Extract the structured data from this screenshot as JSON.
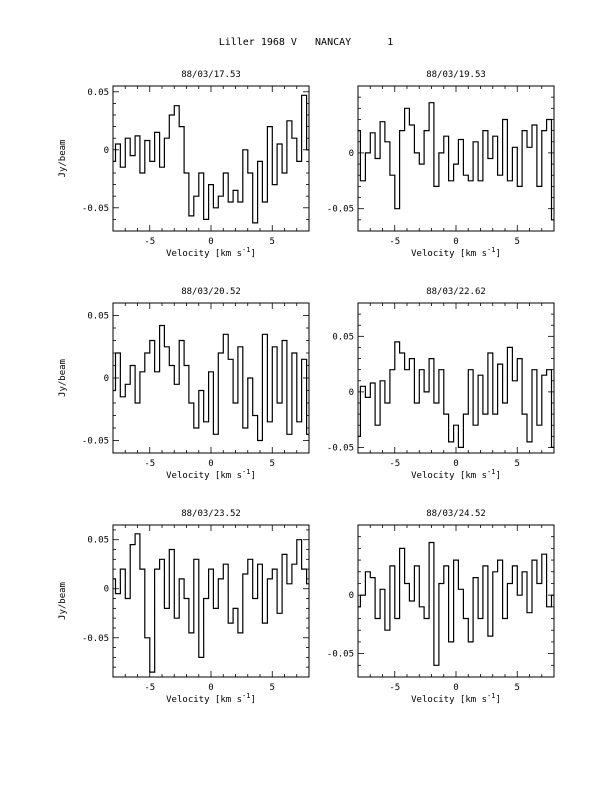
{
  "page": {
    "title_parts": [
      "Liller 1968 V",
      "NANCAY",
      "1"
    ]
  },
  "chart_data": [
    {
      "type": "line",
      "title": "88/03/17.53",
      "xlabel": "Velocity [km s",
      "xlabel_sup": "-1",
      "xlabel_end": "]",
      "ylabel": "Jy/beam",
      "xlim": [
        -8,
        8
      ],
      "ylim": [
        -0.07,
        0.055
      ],
      "xticks": [
        -5,
        0,
        5
      ],
      "xticklabels": [
        "-5",
        "0",
        "5"
      ],
      "yticks": [
        -0.05,
        0,
        0.05
      ],
      "yticklabels": [
        "-0.05",
        "0",
        "0.05"
      ],
      "x": [
        -8.0,
        -7.6,
        -7.2,
        -6.8,
        -6.4,
        -6.0,
        -5.6,
        -5.2,
        -4.8,
        -4.4,
        -4.0,
        -3.6,
        -3.2,
        -2.8,
        -2.4,
        -2.0,
        -1.6,
        -1.2,
        -0.8,
        -0.4,
        0.0,
        0.4,
        0.8,
        1.2,
        1.6,
        2.0,
        2.4,
        2.8,
        3.2,
        3.6,
        4.0,
        4.4,
        4.8,
        5.2,
        5.6,
        6.0,
        6.4,
        6.8,
        7.2,
        7.6,
        8.0
      ],
      "values": [
        -0.01,
        0.005,
        -0.015,
        0.01,
        -0.005,
        0.012,
        -0.02,
        0.008,
        -0.01,
        0.015,
        -0.015,
        0.01,
        0.03,
        0.038,
        0.02,
        -0.02,
        -0.057,
        -0.04,
        -0.02,
        -0.06,
        -0.03,
        -0.05,
        -0.04,
        -0.02,
        -0.045,
        -0.035,
        -0.045,
        0.0,
        -0.02,
        -0.063,
        -0.01,
        -0.045,
        0.02,
        -0.03,
        0.005,
        -0.02,
        0.025,
        0.01,
        -0.01,
        0.047,
        0.0
      ]
    },
    {
      "type": "line",
      "title": "88/03/19.53",
      "xlabel": "Velocity [km s",
      "xlabel_sup": "-1",
      "xlabel_end": "]",
      "ylabel": "",
      "xlim": [
        -8,
        8
      ],
      "ylim": [
        -0.07,
        0.06
      ],
      "xticks": [
        -5,
        0,
        5
      ],
      "xticklabels": [
        "-5",
        "0",
        "5"
      ],
      "yticks": [
        -0.05,
        0
      ],
      "yticklabels": [
        "-0.05",
        "0"
      ],
      "x": [
        -8.0,
        -7.6,
        -7.2,
        -6.8,
        -6.4,
        -6.0,
        -5.6,
        -5.2,
        -4.8,
        -4.4,
        -4.0,
        -3.6,
        -3.2,
        -2.8,
        -2.4,
        -2.0,
        -1.6,
        -1.2,
        -0.8,
        -0.4,
        0.0,
        0.4,
        0.8,
        1.2,
        1.6,
        2.0,
        2.4,
        2.8,
        3.2,
        3.6,
        4.0,
        4.4,
        4.8,
        5.2,
        5.6,
        6.0,
        6.4,
        6.8,
        7.2,
        7.6,
        8.0
      ],
      "values": [
        0.02,
        -0.025,
        0.0,
        0.018,
        -0.005,
        0.028,
        0.01,
        -0.02,
        -0.05,
        0.02,
        0.04,
        0.025,
        0.0,
        -0.01,
        0.02,
        0.045,
        -0.03,
        0.0,
        0.015,
        -0.025,
        -0.01,
        0.012,
        -0.02,
        -0.025,
        0.01,
        -0.025,
        0.02,
        -0.005,
        0.015,
        -0.02,
        0.03,
        -0.025,
        0.005,
        -0.03,
        0.02,
        0.005,
        0.025,
        -0.03,
        0.02,
        0.03,
        -0.06
      ]
    },
    {
      "type": "line",
      "title": "88/03/20.52",
      "xlabel": "Velocity [km s",
      "xlabel_sup": "-1",
      "xlabel_end": "]",
      "ylabel": "Jy/beam",
      "xlim": [
        -8,
        8
      ],
      "ylim": [
        -0.06,
        0.06
      ],
      "xticks": [
        -5,
        0,
        5
      ],
      "xticklabels": [
        "-5",
        "0",
        "5"
      ],
      "yticks": [
        -0.05,
        0,
        0.05
      ],
      "yticklabels": [
        "-0.05",
        "0",
        "0.05"
      ],
      "x": [
        -8.0,
        -7.6,
        -7.2,
        -6.8,
        -6.4,
        -6.0,
        -5.6,
        -5.2,
        -4.8,
        -4.4,
        -4.0,
        -3.6,
        -3.2,
        -2.8,
        -2.4,
        -2.0,
        -1.6,
        -1.2,
        -0.8,
        -0.4,
        0.0,
        0.4,
        0.8,
        1.2,
        1.6,
        2.0,
        2.4,
        2.8,
        3.2,
        3.6,
        4.0,
        4.4,
        4.8,
        5.2,
        5.6,
        6.0,
        6.4,
        6.8,
        7.2,
        7.6,
        8.0
      ],
      "values": [
        -0.01,
        0.02,
        -0.015,
        -0.005,
        0.01,
        -0.02,
        0.005,
        0.02,
        0.03,
        0.005,
        0.042,
        0.025,
        0.01,
        -0.005,
        0.03,
        0.01,
        -0.02,
        -0.04,
        -0.01,
        -0.035,
        0.005,
        -0.045,
        0.02,
        0.035,
        0.015,
        -0.02,
        0.025,
        -0.04,
        0.0,
        -0.03,
        -0.05,
        0.035,
        -0.035,
        0.025,
        -0.02,
        0.03,
        -0.045,
        0.02,
        -0.035,
        0.015,
        -0.045
      ]
    },
    {
      "type": "line",
      "title": "88/03/22.62",
      "xlabel": "Velocity [km s",
      "xlabel_sup": "-1",
      "xlabel_end": "]",
      "ylabel": "",
      "xlim": [
        -8,
        8
      ],
      "ylim": [
        -0.055,
        0.08
      ],
      "xticks": [
        -5,
        0,
        5
      ],
      "xticklabels": [
        "-5",
        "0",
        "5"
      ],
      "yticks": [
        -0.05,
        0,
        0.05
      ],
      "yticklabels": [
        "-0.05",
        "0",
        "0.05"
      ],
      "x": [
        -8.0,
        -7.6,
        -7.2,
        -6.8,
        -6.4,
        -6.0,
        -5.6,
        -5.2,
        -4.8,
        -4.4,
        -4.0,
        -3.6,
        -3.2,
        -2.8,
        -2.4,
        -2.0,
        -1.6,
        -1.2,
        -0.8,
        -0.4,
        0.0,
        0.4,
        0.8,
        1.2,
        1.6,
        2.0,
        2.4,
        2.8,
        3.2,
        3.6,
        4.0,
        4.4,
        4.8,
        5.2,
        5.6,
        6.0,
        6.4,
        6.8,
        7.2,
        7.6,
        8.0
      ],
      "values": [
        -0.04,
        0.005,
        -0.005,
        0.008,
        -0.03,
        0.01,
        -0.01,
        0.02,
        0.045,
        0.035,
        0.02,
        0.03,
        -0.01,
        0.02,
        0.0,
        0.03,
        -0.01,
        0.02,
        -0.02,
        -0.045,
        -0.03,
        -0.05,
        -0.02,
        0.02,
        -0.03,
        0.015,
        -0.02,
        0.035,
        -0.02,
        0.025,
        -0.01,
        0.04,
        0.01,
        0.03,
        -0.02,
        -0.045,
        0.02,
        -0.03,
        0.015,
        0.02,
        -0.05
      ]
    },
    {
      "type": "line",
      "title": "88/03/23.52",
      "xlabel": "Velocity [km s",
      "xlabel_sup": "-1",
      "xlabel_end": "]",
      "ylabel": "Jy/beam",
      "xlim": [
        -8,
        8
      ],
      "ylim": [
        -0.09,
        0.065
      ],
      "xticks": [
        -5,
        0,
        5
      ],
      "xticklabels": [
        "-5",
        "0",
        "5"
      ],
      "yticks": [
        -0.05,
        0,
        0.05
      ],
      "yticklabels": [
        "-0.05",
        "0",
        "0.05"
      ],
      "x": [
        -8.0,
        -7.6,
        -7.2,
        -6.8,
        -6.4,
        -6.0,
        -5.6,
        -5.2,
        -4.8,
        -4.4,
        -4.0,
        -3.6,
        -3.2,
        -2.8,
        -2.4,
        -2.0,
        -1.6,
        -1.2,
        -0.8,
        -0.4,
        0.0,
        0.4,
        0.8,
        1.2,
        1.6,
        2.0,
        2.4,
        2.8,
        3.2,
        3.6,
        4.0,
        4.4,
        4.8,
        5.2,
        5.6,
        6.0,
        6.4,
        6.8,
        7.2,
        7.6,
        8.0
      ],
      "values": [
        0.01,
        -0.005,
        0.02,
        -0.01,
        0.045,
        0.056,
        0.02,
        -0.05,
        -0.085,
        0.02,
        0.03,
        -0.02,
        0.04,
        -0.03,
        0.01,
        -0.01,
        -0.045,
        0.03,
        -0.07,
        -0.01,
        0.02,
        -0.02,
        0.01,
        0.025,
        -0.035,
        -0.02,
        -0.045,
        0.015,
        0.03,
        -0.01,
        0.025,
        -0.035,
        0.01,
        0.02,
        -0.025,
        0.035,
        0.005,
        0.025,
        0.05,
        0.02,
        0.005
      ]
    },
    {
      "type": "line",
      "title": "88/03/24.52",
      "xlabel": "Velocity [km s",
      "xlabel_sup": "-1",
      "xlabel_end": "]",
      "ylabel": "",
      "xlim": [
        -8,
        8
      ],
      "ylim": [
        -0.07,
        0.06
      ],
      "xticks": [
        -5,
        0,
        5
      ],
      "xticklabels": [
        "-5",
        "0",
        "5"
      ],
      "yticks": [
        -0.05,
        0
      ],
      "yticklabels": [
        "-0.05",
        "0"
      ],
      "x": [
        -8.0,
        -7.6,
        -7.2,
        -6.8,
        -6.4,
        -6.0,
        -5.6,
        -5.2,
        -4.8,
        -4.4,
        -4.0,
        -3.6,
        -3.2,
        -2.8,
        -2.4,
        -2.0,
        -1.6,
        -1.2,
        -0.8,
        -0.4,
        0.0,
        0.4,
        0.8,
        1.2,
        1.6,
        2.0,
        2.4,
        2.8,
        3.2,
        3.6,
        4.0,
        4.4,
        4.8,
        5.2,
        5.6,
        6.0,
        6.4,
        6.8,
        7.2,
        7.6,
        8.0
      ],
      "values": [
        -0.01,
        0.0,
        0.02,
        0.015,
        -0.02,
        0.005,
        -0.03,
        0.025,
        -0.02,
        0.04,
        0.01,
        -0.005,
        0.025,
        -0.01,
        -0.02,
        0.045,
        -0.06,
        0.01,
        0.025,
        -0.04,
        0.03,
        0.005,
        -0.02,
        -0.04,
        0.015,
        -0.02,
        0.025,
        -0.035,
        0.02,
        0.03,
        -0.02,
        0.01,
        0.025,
        0.0,
        0.02,
        -0.015,
        0.03,
        0.01,
        0.035,
        -0.01,
        0.0
      ]
    }
  ]
}
